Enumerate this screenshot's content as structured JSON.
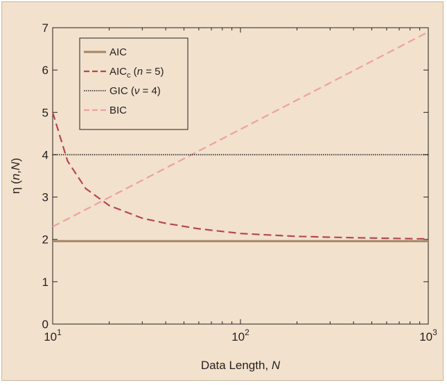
{
  "chart_data": {
    "type": "line",
    "xscale": "log",
    "xlim": [
      10,
      1000
    ],
    "ylim": [
      0,
      7
    ],
    "grid": false,
    "legend_position": "top-left",
    "xlabel": {
      "main": "Data Length, ",
      "var": "N"
    },
    "ylabel": {
      "sym": "η (",
      "n": "n",
      "sep": ",",
      "N": "N",
      "close": ")"
    },
    "x_ticks": [
      {
        "base": "10",
        "exp": "1",
        "value": 10
      },
      {
        "base": "10",
        "exp": "2",
        "value": 100
      },
      {
        "base": "10",
        "exp": "3",
        "value": 1000
      }
    ],
    "y_ticks": [
      "0",
      "1",
      "2",
      "3",
      "4",
      "5",
      "6",
      "7"
    ],
    "series": [
      {
        "id": "aic",
        "legend": {
          "pre": "AIC"
        },
        "color": "#a48567",
        "style": "solid",
        "points": [
          [
            10,
            1.96
          ],
          [
            1000,
            1.96
          ]
        ]
      },
      {
        "id": "aicc",
        "legend": {
          "pre": "AIC",
          "sub": "c",
          "mid": " (",
          "var": "n",
          "post": " = 5)"
        },
        "color": "#b3474f",
        "style": "dashed",
        "points": [
          [
            10,
            5.0
          ],
          [
            12,
            3.85
          ],
          [
            15,
            3.2
          ],
          [
            20,
            2.8
          ],
          [
            30,
            2.5
          ],
          [
            40,
            2.38
          ],
          [
            60,
            2.25
          ],
          [
            100,
            2.14
          ],
          [
            200,
            2.07
          ],
          [
            400,
            2.04
          ],
          [
            1000,
            2.01
          ]
        ]
      },
      {
        "id": "gic",
        "legend": {
          "pre": "GIC (",
          "var": "ν",
          "post": " = 4)"
        },
        "color": "#231f20",
        "style": "dotted",
        "points": [
          [
            10,
            4.0
          ],
          [
            1000,
            4.0
          ]
        ]
      },
      {
        "id": "bic",
        "legend": {
          "pre": "BIC"
        },
        "color": "#eda0a2",
        "style": "dashed",
        "points": [
          [
            10,
            2.3
          ],
          [
            1000,
            6.9
          ]
        ]
      }
    ]
  }
}
